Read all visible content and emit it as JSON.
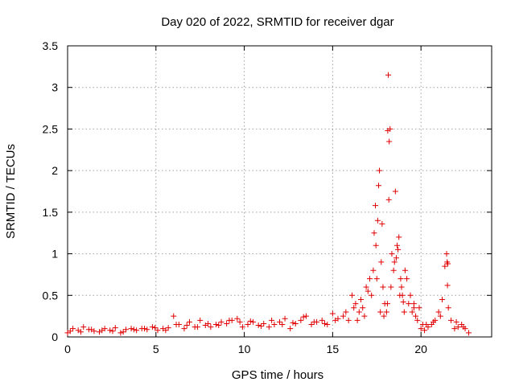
{
  "chart_data": {
    "type": "scatter",
    "title": "Day 020 of 2022, SRMTID for receiver dgar",
    "xlabel": "GPS time / hours",
    "ylabel": "SRMTID / TECUs",
    "xlim": [
      0,
      24
    ],
    "ylim": [
      0,
      3.5
    ],
    "xticks": [
      0,
      5,
      10,
      15,
      20
    ],
    "xtick_labels": [
      "0",
      "5",
      "10",
      "15",
      "20"
    ],
    "yticks": [
      0,
      0.5,
      1,
      1.5,
      2,
      2.5,
      3,
      3.5
    ],
    "ytick_labels": [
      "0",
      "0.5",
      "1",
      "1.5",
      "2",
      "2.5",
      "3",
      "3.5"
    ],
    "grid": true,
    "marker": "+",
    "color": "#e00000",
    "series": [
      {
        "name": "SRMTID",
        "x": [
          0.0,
          0.3,
          0.6,
          0.9,
          1.2,
          1.5,
          1.8,
          2.1,
          2.4,
          2.7,
          3.0,
          3.3,
          3.6,
          3.9,
          4.2,
          4.5,
          4.8,
          5.1,
          5.4,
          5.7,
          6.0,
          6.3,
          6.6,
          6.9,
          7.2,
          7.5,
          7.8,
          8.1,
          8.4,
          8.7,
          9.0,
          9.3,
          9.6,
          9.9,
          10.2,
          10.5,
          10.8,
          11.1,
          11.4,
          11.7,
          12.0,
          12.3,
          12.6,
          12.9,
          13.2,
          13.5,
          13.8,
          14.1,
          14.4,
          14.7,
          15.0,
          15.3,
          15.6,
          15.9,
          16.1,
          16.3,
          16.5,
          16.7,
          16.9,
          17.1,
          17.3,
          17.45,
          17.55,
          17.65,
          17.75,
          17.85,
          17.95,
          18.05,
          18.15,
          18.25,
          18.35,
          18.45,
          18.55,
          18.65,
          18.75,
          18.85,
          18.95,
          19.05,
          19.2,
          19.4,
          19.6,
          19.8,
          20.0,
          20.2,
          20.4,
          20.6,
          20.8,
          21.0,
          21.2,
          21.35,
          21.45,
          21.55,
          21.7,
          21.9,
          22.1,
          22.3,
          22.5,
          22.7,
          0.15,
          0.75,
          1.35,
          1.95,
          2.55,
          3.15,
          3.75,
          4.35,
          4.95,
          5.55,
          6.15,
          6.75,
          7.35,
          7.95,
          8.55,
          9.15,
          9.75,
          10.35,
          10.95,
          11.55,
          12.15,
          12.75,
          13.35,
          13.95,
          14.55,
          15.15,
          15.75,
          16.2,
          16.6,
          17.0,
          17.5,
          17.7,
          17.9,
          18.1,
          18.3,
          18.5,
          18.7,
          18.9,
          19.1,
          19.3,
          19.5,
          19.7,
          19.9,
          20.3,
          20.7,
          21.1,
          21.5,
          22.0,
          22.4,
          17.6,
          17.8,
          18.2,
          18.6,
          19.0,
          17.35,
          17.42,
          18.12,
          18.18,
          18.8,
          21.48,
          21.52,
          16.4,
          16.8,
          17.2,
          19.6,
          20.1
        ],
        "y": [
          0.05,
          0.1,
          0.08,
          0.12,
          0.09,
          0.07,
          0.06,
          0.1,
          0.08,
          0.11,
          0.05,
          0.09,
          0.1,
          0.08,
          0.1,
          0.09,
          0.12,
          0.08,
          0.1,
          0.11,
          0.25,
          0.15,
          0.1,
          0.18,
          0.12,
          0.2,
          0.14,
          0.12,
          0.15,
          0.18,
          0.16,
          0.2,
          0.22,
          0.12,
          0.15,
          0.18,
          0.14,
          0.16,
          0.12,
          0.15,
          0.18,
          0.22,
          0.1,
          0.16,
          0.2,
          0.25,
          0.15,
          0.18,
          0.2,
          0.15,
          0.28,
          0.22,
          0.25,
          0.2,
          0.5,
          0.4,
          0.3,
          0.35,
          0.6,
          0.7,
          0.8,
          1.1,
          1.4,
          2.0,
          0.9,
          0.6,
          0.4,
          0.3,
          3.15,
          2.5,
          1.0,
          0.8,
          1.75,
          1.1,
          1.2,
          0.7,
          0.5,
          0.3,
          0.7,
          0.5,
          0.35,
          0.2,
          0.1,
          0.08,
          0.12,
          0.15,
          0.2,
          0.3,
          0.45,
          0.85,
          1.0,
          0.35,
          0.2,
          0.1,
          0.12,
          0.15,
          0.1,
          0.05,
          0.07,
          0.06,
          0.09,
          0.08,
          0.07,
          0.06,
          0.09,
          0.1,
          0.11,
          0.08,
          0.15,
          0.14,
          0.12,
          0.16,
          0.14,
          0.2,
          0.18,
          0.19,
          0.13,
          0.2,
          0.15,
          0.17,
          0.24,
          0.18,
          0.16,
          0.2,
          0.3,
          0.35,
          0.45,
          0.55,
          0.7,
          0.3,
          0.25,
          0.4,
          0.6,
          0.9,
          1.05,
          0.6,
          0.8,
          0.4,
          0.3,
          0.25,
          0.35,
          0.15,
          0.18,
          0.25,
          0.62,
          0.18,
          0.12,
          1.82,
          1.36,
          2.35,
          0.95,
          0.42,
          1.25,
          1.58,
          2.48,
          1.65,
          0.5,
          0.9,
          0.88,
          0.2,
          0.25,
          0.5,
          0.4,
          0.15
        ]
      }
    ]
  }
}
